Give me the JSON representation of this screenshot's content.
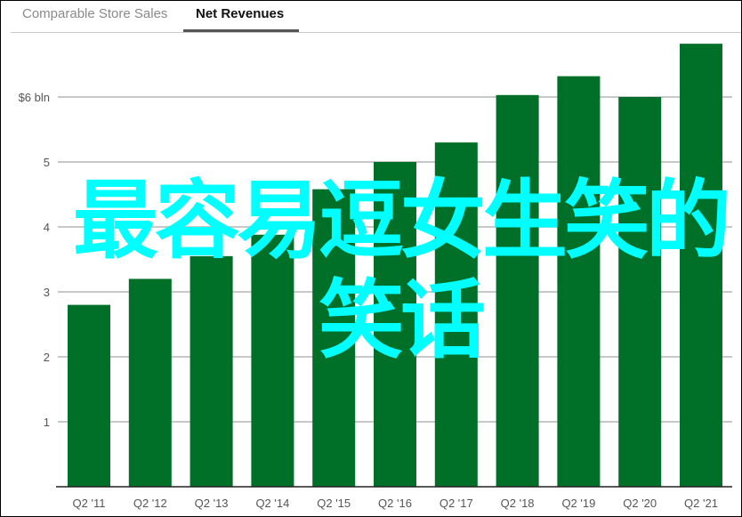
{
  "tabs": [
    {
      "label": "Comparable Store Sales",
      "active": false
    },
    {
      "label": "Net Revenues",
      "active": true
    }
  ],
  "chart_data": {
    "type": "bar",
    "title": "",
    "xlabel": "",
    "ylabel": "",
    "categories": [
      "Q2 '11",
      "Q2 '12",
      "Q2 '13",
      "Q2 '14",
      "Q2 '15",
      "Q2 '16",
      "Q2 '17",
      "Q2 '18",
      "Q2 '19",
      "Q2 '20",
      "Q2 '21"
    ],
    "values": [
      2.8,
      3.2,
      3.55,
      3.88,
      4.58,
      5.0,
      5.3,
      6.03,
      6.32,
      6.0,
      6.82
    ],
    "ylim": [
      0,
      7.1
    ],
    "yticks": [
      {
        "value": 1,
        "label": "1"
      },
      {
        "value": 2,
        "label": "2"
      },
      {
        "value": 3,
        "label": "3"
      },
      {
        "value": 4,
        "label": "4"
      },
      {
        "value": 5,
        "label": "5"
      },
      {
        "value": 6,
        "label": "$6 bln"
      }
    ],
    "grid": true,
    "bar_color": "#006f27"
  },
  "overlay": {
    "line1": "最容易逗女生笑的",
    "line2": "笑话",
    "color": "#00ffff"
  }
}
